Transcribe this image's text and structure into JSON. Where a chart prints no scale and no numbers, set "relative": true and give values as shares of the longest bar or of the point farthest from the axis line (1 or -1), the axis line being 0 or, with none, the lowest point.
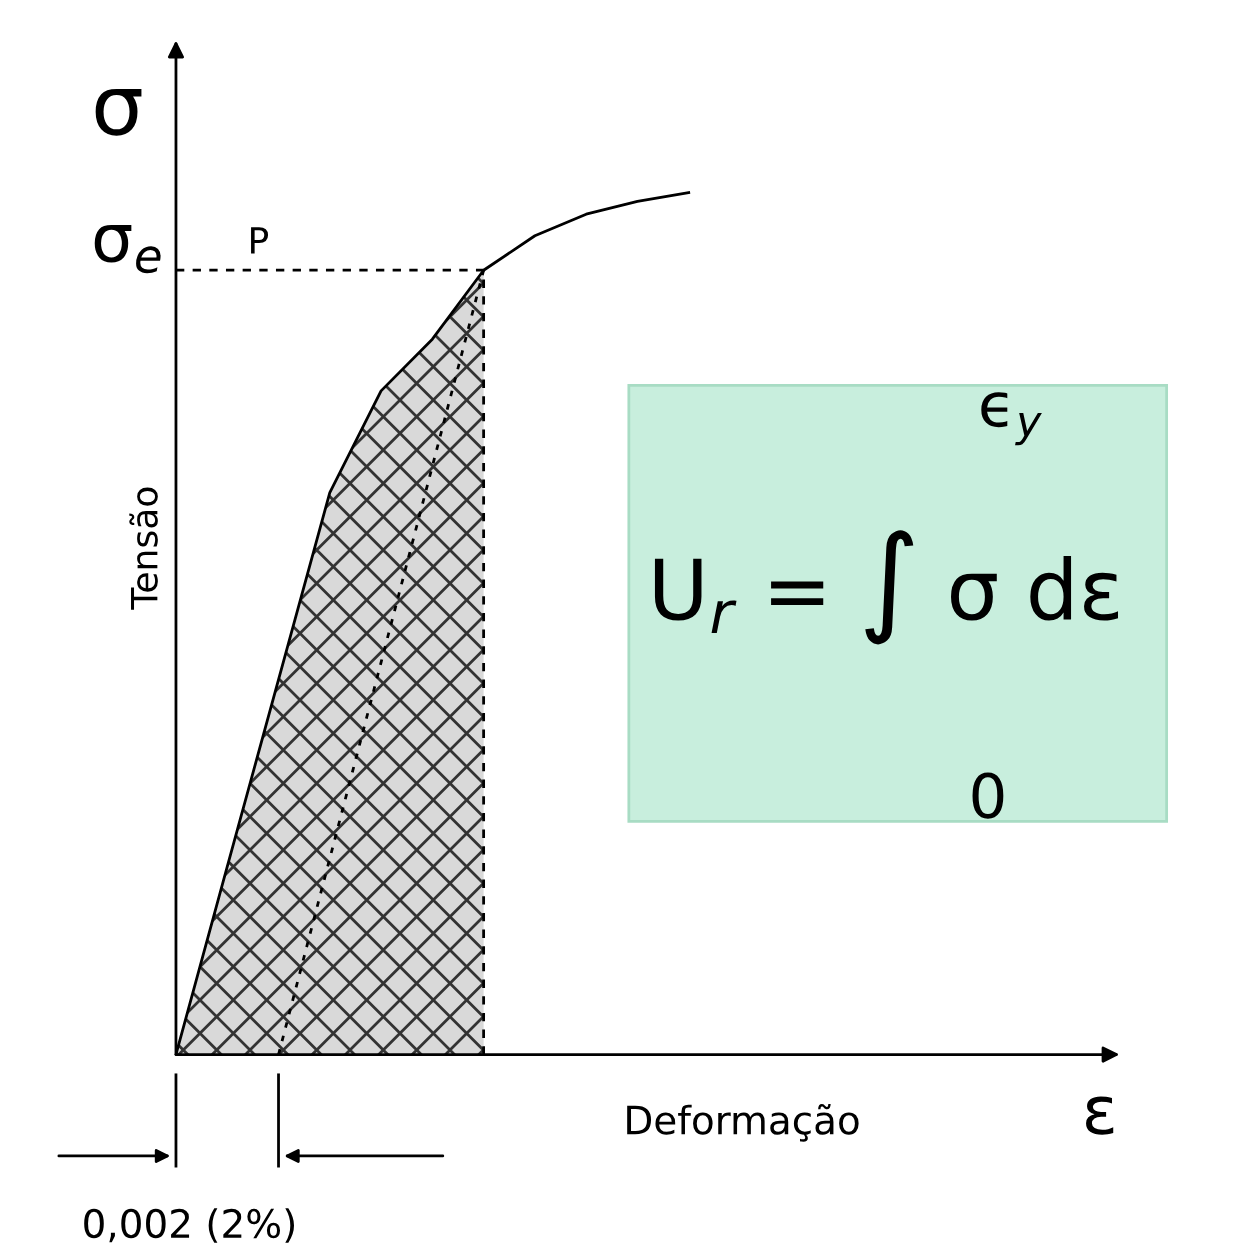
{
  "chart_data": {
    "type": "line",
    "relative": true,
    "xlabel": "Deformação",
    "ylabel": "Tensão",
    "tick_labels": false,
    "categories": [
      null,
      null,
      null,
      null,
      null,
      null,
      null,
      null,
      null,
      null,
      null,
      null,
      null,
      null,
      null,
      null,
      null,
      null,
      null
    ],
    "series": [
      {
        "color": "#000000",
        "values": [
          0,
          0.218,
          0.435,
          0.652,
          0.77,
          0.83,
          0.91,
          0.95,
          0.975,
          0.99,
          1,
          null,
          null,
          null,
          null,
          null,
          null,
          null,
          null
        ]
      },
      {
        "color": "#000000",
        "line_style": "dotted",
        "values": [
          null,
          null,
          0,
          0.2275,
          0.455,
          0.6825,
          0.91,
          null,
          null,
          null,
          null,
          null,
          null,
          null,
          null,
          null,
          null,
          null,
          null
        ]
      }
    ],
    "ref_lines": [
      {
        "axis": "y",
        "value": 0.91,
        "line_style": "dashed",
        "label": "P",
        "color": "#000000"
      }
    ],
    "annotations": [
      "σ",
      "σ$_{e}$",
      "ε",
      "0,002 (2%)",
      "U$_{r}$ = ∫ σ dε",
      "ϵ$_{y}$",
      "0"
    ]
  }
}
